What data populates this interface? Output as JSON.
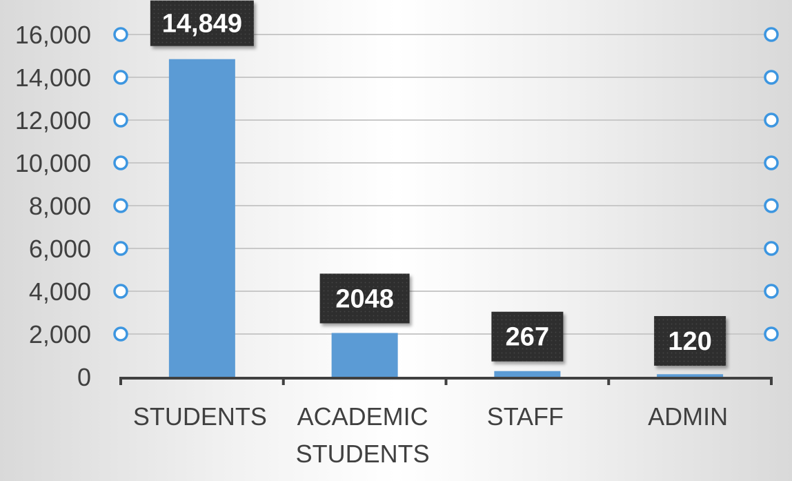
{
  "chart_data": {
    "type": "bar",
    "categories": [
      "STUDENTS",
      "ACADEMIC STUDENTS",
      "STAFF",
      "ADMIN"
    ],
    "category_lines": [
      [
        "STUDENTS"
      ],
      [
        "ACADEMIC",
        "STUDENTS"
      ],
      [
        "STAFF"
      ],
      [
        "ADMIN"
      ]
    ],
    "values": [
      14849,
      2048,
      267,
      120
    ],
    "data_labels": [
      "14,849",
      "2048",
      "267",
      "120"
    ],
    "yticks": [
      0,
      2000,
      4000,
      6000,
      8000,
      10000,
      12000,
      14000,
      16000
    ],
    "ytick_labels": [
      "0",
      "2,000",
      "4,000",
      "6,000",
      "8,000",
      "10,000",
      "12,000",
      "14,000",
      "16,000"
    ],
    "ylim": [
      0,
      16000
    ],
    "grid": true,
    "title": "",
    "xlabel": "",
    "ylabel": "",
    "colors": {
      "bar": "#5b9bd5",
      "label_bg": "#2f2f2f",
      "label_text": "#ffffff",
      "grid": "#c8c8c8",
      "axis": "#404040",
      "tick_text": "#404040",
      "marker": "#3d96e0"
    }
  }
}
